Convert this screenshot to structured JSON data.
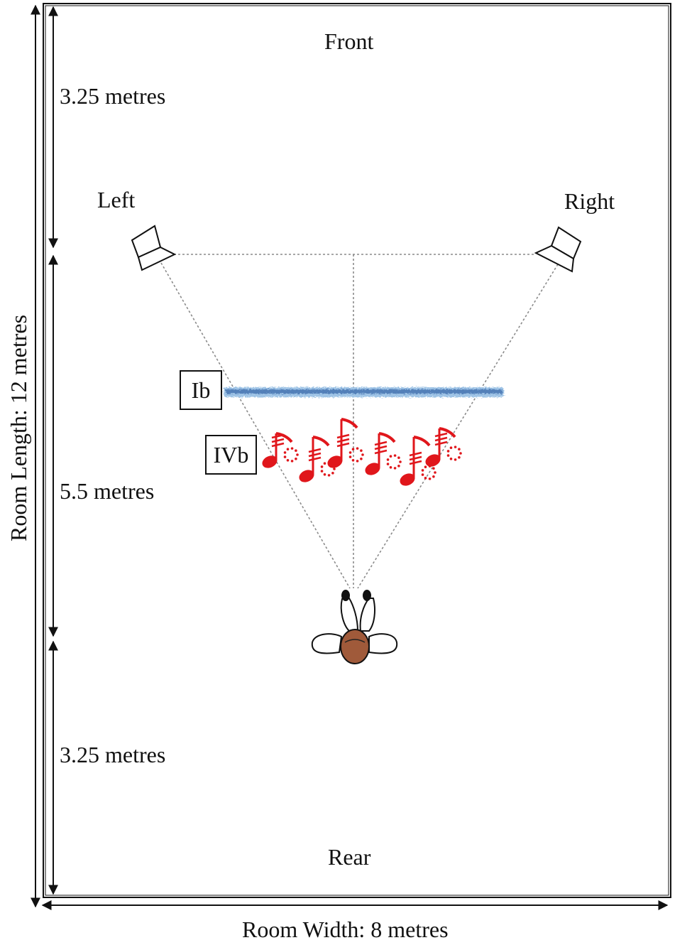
{
  "room": {
    "front_label": "Front",
    "rear_label": "Rear",
    "width_label": "Room Width: 8 metres",
    "length_label": "Room Length: 12  metres"
  },
  "segments": {
    "front_gap": "3.25 metres",
    "listening_gap": "5.5 metres",
    "rear_gap": "3.25 metres"
  },
  "speakers": {
    "left_label": "Left",
    "right_label": "Right"
  },
  "zones": {
    "ib_label": "Ib",
    "ivb_label": "IVb"
  },
  "colors": {
    "ib_band": "#5b8fc7",
    "ivb_notes": "#e0161b",
    "guide_lines": "#8a8a8a",
    "listener_head": "#8b4a2e"
  },
  "icons": [
    "speaker-icon",
    "listener-icon",
    "music-notes-icon",
    "double-arrow-icon"
  ]
}
